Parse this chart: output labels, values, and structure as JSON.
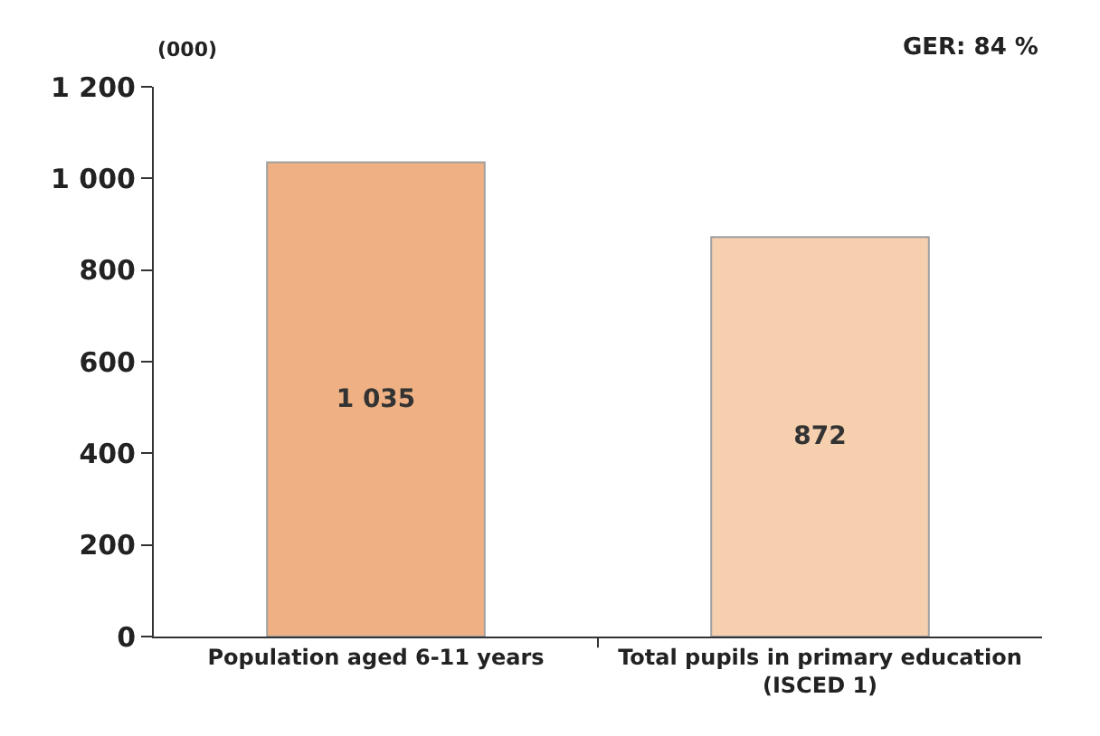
{
  "chart_data": {
    "type": "bar",
    "categories": [
      "Population aged 6-11 years",
      "Total pupils in primary education\n(ISCED 1)"
    ],
    "values": [
      1035,
      872
    ],
    "colors": [
      "#efb183",
      "#f5cfae"
    ],
    "value_labels": [
      "1 035",
      "872"
    ],
    "ylim": [
      0,
      1200
    ],
    "yticks": [
      0,
      200,
      400,
      600,
      800,
      {
        "value": 1000,
        "label": "1 000"
      },
      {
        "value": 1200,
        "label": "1 200"
      }
    ],
    "legend": false,
    "annotations": [
      "(000)",
      "GER: 84 %"
    ]
  }
}
